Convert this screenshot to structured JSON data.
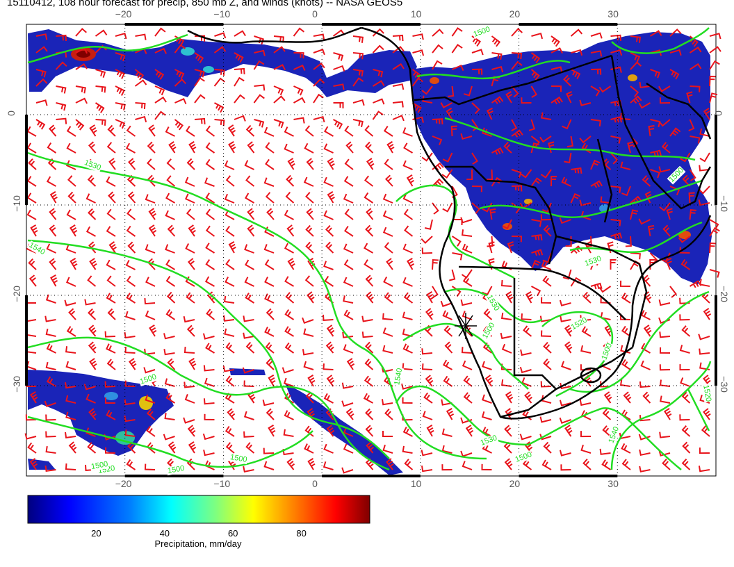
{
  "title": "15110412, 108 hour forecast for precip, 850 mb Z, and winds (knots) -- NASA GEOS5",
  "map": {
    "lon_range": [
      -30,
      40
    ],
    "lat_range": [
      -40,
      10
    ],
    "lon_ticks": [
      -20,
      -10,
      0,
      10,
      20,
      30
    ],
    "lat_ticks": [
      0,
      -10,
      -20,
      -30
    ],
    "lon_tick_labels": [
      "−20",
      "−10",
      "0",
      "10",
      "20",
      "30"
    ],
    "lat_tick_labels": [
      "0",
      "−10",
      "−20",
      "−30"
    ],
    "gridlines": "dotted",
    "wind_barb_color": "#e8141b",
    "contour_color": "#22dd22",
    "coast_color": "#000000",
    "contour_labels": [
      "1500",
      "1530",
      "1540",
      "1500",
      "1520",
      "1500",
      "1500",
      "1540",
      "1530",
      "1500",
      "1520",
      "1530",
      "1500",
      "1540",
      "1500",
      "1530",
      "1500",
      "1520",
      "1500"
    ]
  },
  "colorbar": {
    "label": "Precipitation, mm/day",
    "ticks": [
      "20",
      "40",
      "60",
      "80"
    ],
    "tick_values": [
      20,
      40,
      60,
      80
    ],
    "range": [
      0,
      100
    ],
    "colors": [
      "#00007f",
      "#0000ff",
      "#007fff",
      "#00ffff",
      "#7fff7f",
      "#ffff00",
      "#ff7f00",
      "#ff0000",
      "#7f0000"
    ]
  }
}
